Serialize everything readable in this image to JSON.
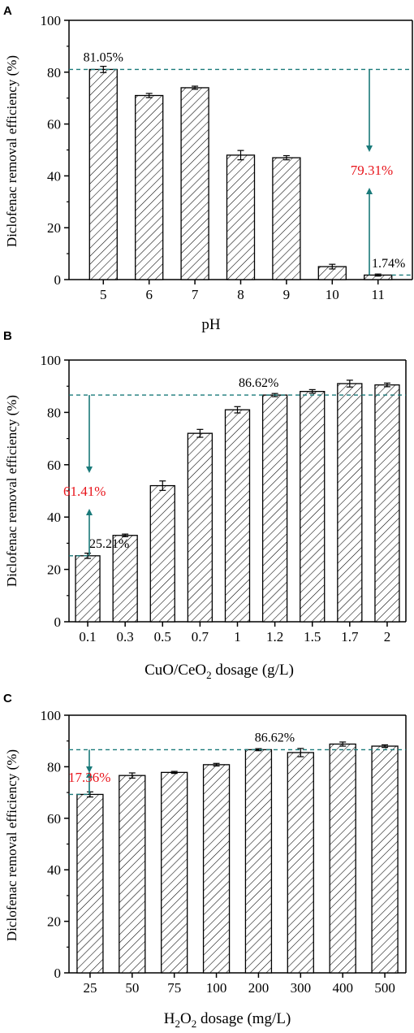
{
  "colors": {
    "axis": "#000000",
    "bar_fill": "#ffffff",
    "hatch": "#000000",
    "dashed_line": "#1a7a7a",
    "arrow": "#1a7a7a",
    "highlight_text": "#e8141b"
  },
  "chart_data": [
    {
      "panel_label": "A",
      "type": "bar",
      "categories": [
        "5",
        "6",
        "7",
        "8",
        "9",
        "10",
        "11"
      ],
      "values": [
        81.05,
        71.0,
        74.0,
        48.0,
        47.0,
        5.0,
        1.74
      ],
      "errors": [
        1.2,
        0.8,
        0.6,
        1.8,
        0.8,
        0.9,
        0.4
      ],
      "xlabel": "pH",
      "ylabel": "Diclofenac removal efficiency (%)",
      "ylim": [
        0,
        100
      ],
      "yticks": [
        "0",
        "20",
        "40",
        "60",
        "80",
        "100"
      ],
      "grid": false,
      "annotations": {
        "top_label": "81.05%",
        "top_value": 81.05,
        "top_index": 0,
        "bottom_label": "1.74%",
        "bottom_value": 1.74,
        "bottom_index": 6,
        "diff_label": "79.31%"
      }
    },
    {
      "panel_label": "B",
      "type": "bar",
      "categories": [
        "0.1",
        "0.3",
        "0.5",
        "0.7",
        "1",
        "1.2",
        "1.5",
        "1.7",
        "2"
      ],
      "values": [
        25.21,
        33.0,
        52.0,
        72.0,
        81.0,
        86.62,
        88.0,
        91.0,
        90.5
      ],
      "errors": [
        1.0,
        0.5,
        1.8,
        1.5,
        1.2,
        0.6,
        0.7,
        1.3,
        0.7
      ],
      "xlabel_main": "CuO/CeO",
      "xlabel_sub": "2",
      "xlabel_rest": " dosage (g/L)",
      "ylabel": "Diclofenac removal efficiency (%)",
      "ylim": [
        0,
        100
      ],
      "yticks": [
        "0",
        "20",
        "40",
        "60",
        "80",
        "100"
      ],
      "grid": false,
      "annotations": {
        "top_label": "86.62%",
        "top_value": 86.62,
        "top_index": 5,
        "bottom_label": "25.21%",
        "bottom_value": 25.21,
        "bottom_index": 0,
        "diff_label": "61.41%"
      }
    },
    {
      "panel_label": "C",
      "type": "bar",
      "categories": [
        "25",
        "50",
        "75",
        "100",
        "200",
        "300",
        "400",
        "500"
      ],
      "values": [
        69.26,
        76.6,
        77.8,
        80.8,
        86.62,
        85.5,
        88.8,
        88.0
      ],
      "errors": [
        1.0,
        1.0,
        0.4,
        0.5,
        0.4,
        1.6,
        0.8,
        0.5
      ],
      "xlabel_main": "H",
      "xlabel_sub": "2",
      "xlabel_mid": "O",
      "xlabel_sub2": "2",
      "xlabel_rest": " dosage (mg/L)",
      "ylabel": "Diclofenac removal efficiency (%)",
      "ylim": [
        0,
        100
      ],
      "yticks": [
        "0",
        "20",
        "40",
        "60",
        "80",
        "100"
      ],
      "grid": false,
      "annotations": {
        "top_label": "86.62%",
        "top_value": 86.62,
        "top_index": 4,
        "bottom_value": 69.26,
        "bottom_index": 0,
        "diff_label": "17.36%"
      }
    }
  ]
}
